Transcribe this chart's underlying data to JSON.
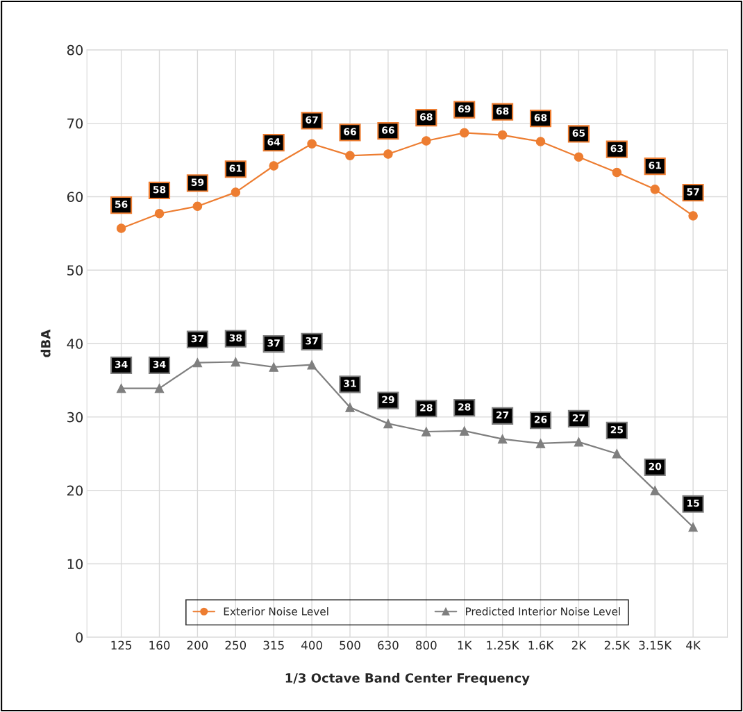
{
  "chart_data": {
    "type": "line",
    "xlabel": "1/3 Octave Band Center Frequency",
    "ylabel": "dBA",
    "categories": [
      "125",
      "160",
      "200",
      "250",
      "315",
      "400",
      "500",
      "630",
      "800",
      "1K",
      "1.25K",
      "1.6K",
      "2K",
      "2.5K",
      "3.15K",
      "4K"
    ],
    "series": [
      {
        "name": "Exterior Noise Level",
        "color": "#ed7d31",
        "marker": "circle",
        "values": [
          55.7,
          57.7,
          58.7,
          60.6,
          64.2,
          67.2,
          65.6,
          65.8,
          67.6,
          68.7,
          68.4,
          67.5,
          65.4,
          63.3,
          61.0,
          57.4
        ],
        "value_labels": [
          "56",
          "58",
          "59",
          "61",
          "64",
          "67",
          "66",
          "66",
          "68",
          "69",
          "68",
          "68",
          "65",
          "63",
          "61",
          "57"
        ]
      },
      {
        "name": "Predicted Interior Noise Level",
        "color": "#7f7f7f",
        "marker": "triangle",
        "values": [
          33.9,
          33.9,
          37.4,
          37.5,
          36.8,
          37.1,
          31.3,
          29.1,
          28.0,
          28.1,
          27.0,
          26.4,
          26.6,
          25.0,
          20.0,
          15.0
        ],
        "value_labels": [
          "34",
          "34",
          "37",
          "38",
          "37",
          "37",
          "31",
          "29",
          "28",
          "28",
          "27",
          "26",
          "27",
          "25",
          "20",
          "15"
        ]
      }
    ],
    "ylim": [
      0,
      80
    ],
    "yticks": [
      0,
      10,
      20,
      30,
      40,
      50,
      60,
      70,
      80
    ],
    "grid": true,
    "legend": "bottom",
    "line_style": "solid"
  }
}
